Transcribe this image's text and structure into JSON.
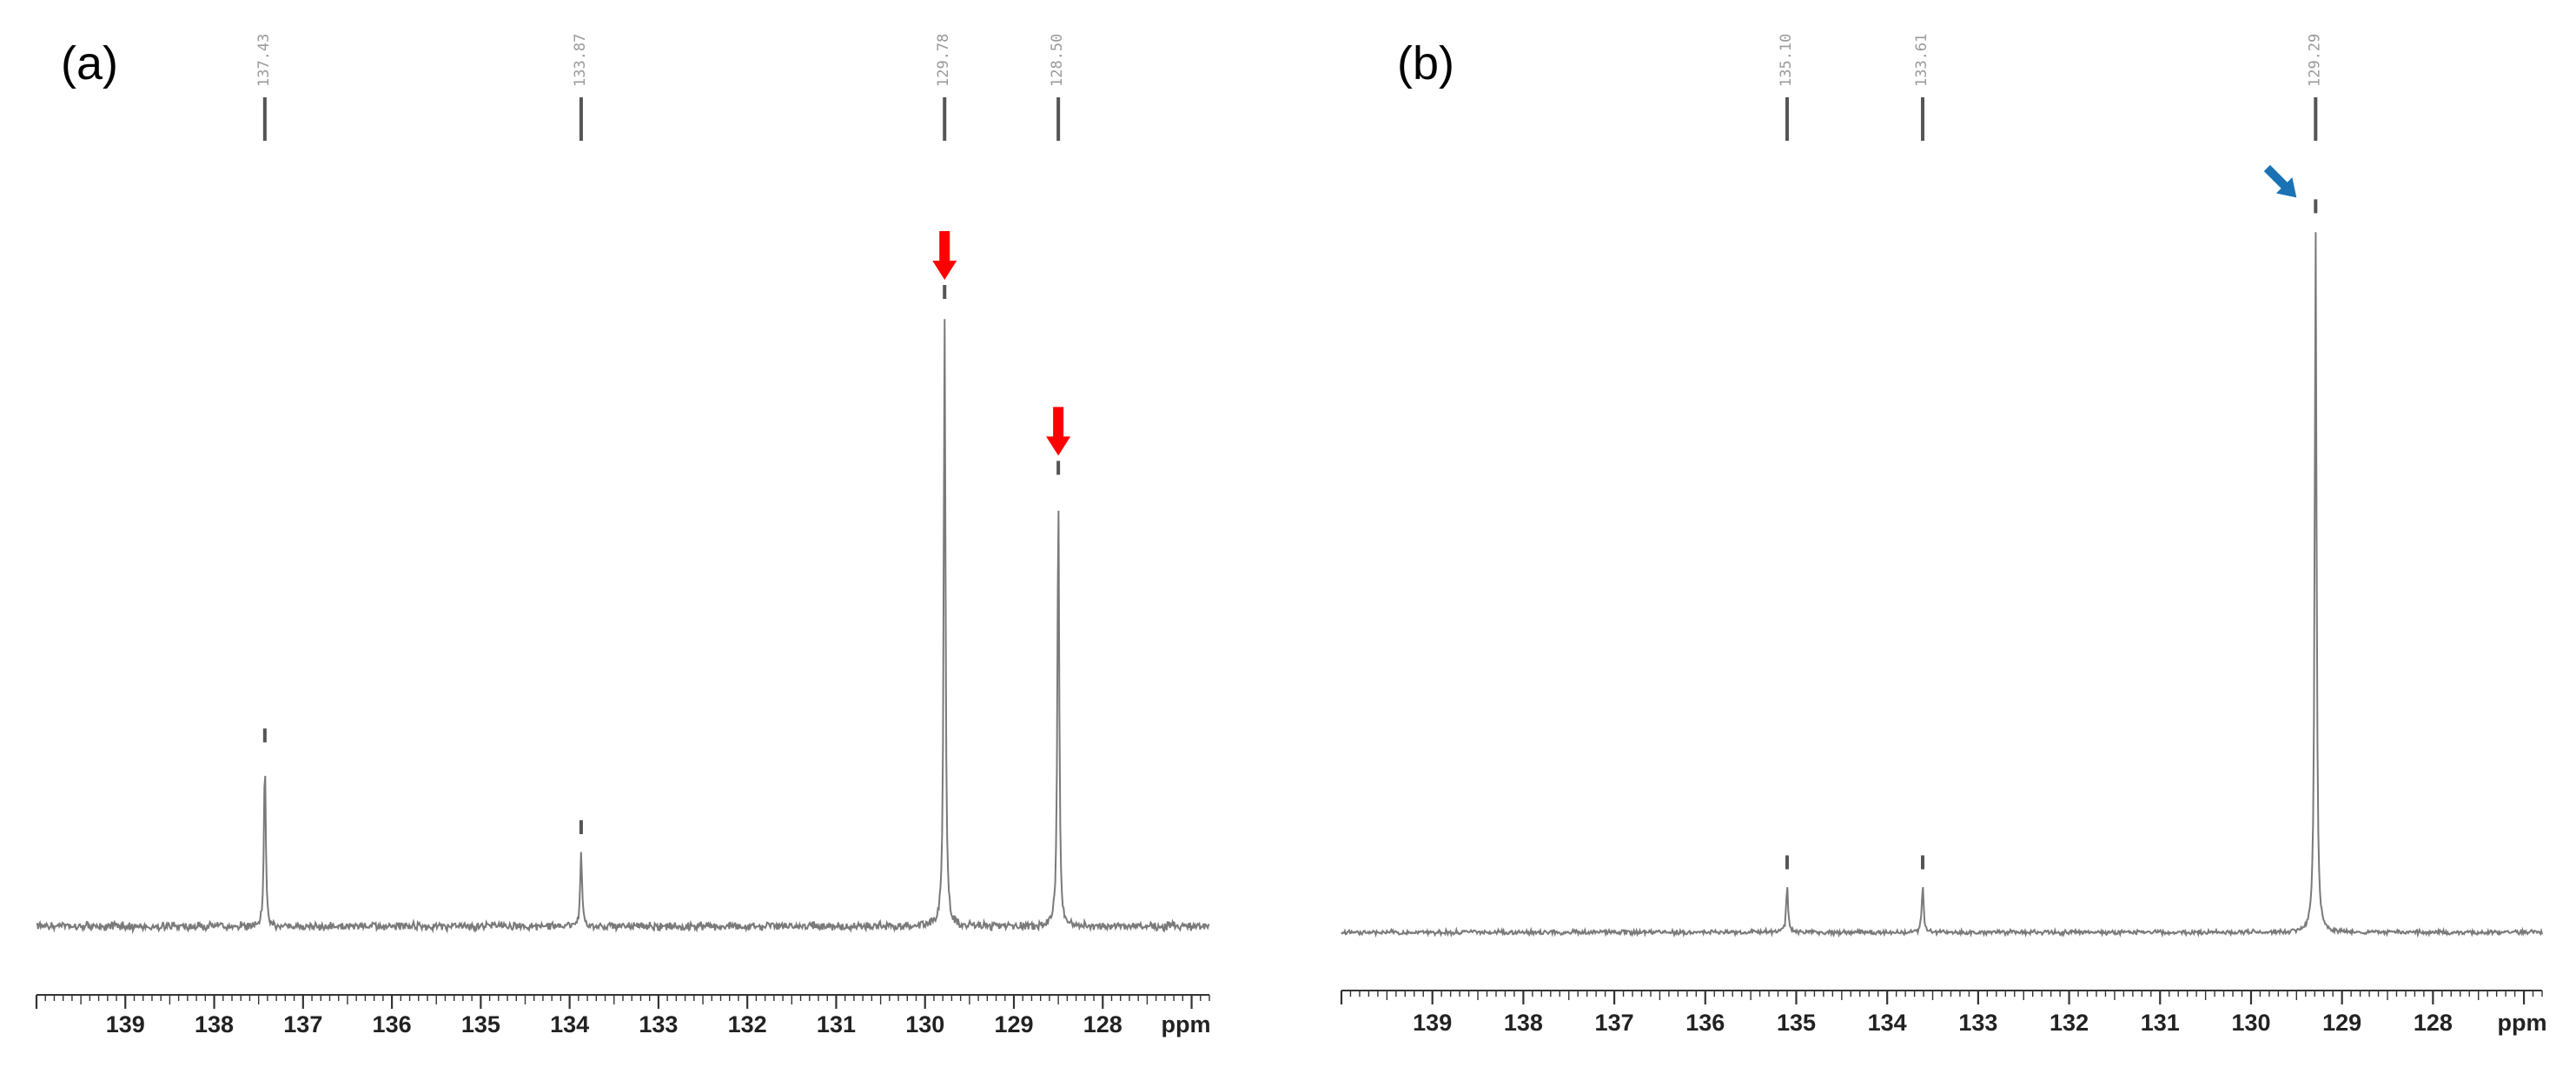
{
  "chart_data": [
    {
      "type": "line",
      "panel_label": "(a)",
      "xlabel": "ppm",
      "xlim": [
        140,
        126.8
      ],
      "x_axis_reversed": true,
      "ticks": [
        139,
        138,
        137,
        136,
        135,
        134,
        133,
        132,
        131,
        130,
        129,
        128
      ],
      "tick_labels": [
        "139",
        "138",
        "137",
        "136",
        "135",
        "134",
        "133",
        "132",
        "131",
        "130",
        "129",
        "128"
      ],
      "grid": false,
      "peak_labels": [
        "137.43",
        "133.87",
        "129.78",
        "128.50"
      ],
      "peaks": [
        {
          "ppm": 137.43,
          "relative_height": 0.22
        },
        {
          "ppm": 133.87,
          "relative_height": 0.1
        },
        {
          "ppm": 129.78,
          "relative_height": 0.8
        },
        {
          "ppm": 128.5,
          "relative_height": 0.57
        }
      ],
      "annotations": [
        {
          "type": "arrow",
          "direction": "down",
          "color": "#ff0000",
          "target_ppm": 129.78
        },
        {
          "type": "arrow",
          "direction": "down",
          "color": "#ff0000",
          "target_ppm": 128.5
        }
      ],
      "line_color": "#7a7a7a"
    },
    {
      "type": "line",
      "panel_label": "(b)",
      "xlabel": "ppm",
      "xlim": [
        140,
        126.8
      ],
      "x_axis_reversed": true,
      "ticks": [
        139,
        138,
        137,
        136,
        135,
        134,
        133,
        132,
        131,
        130,
        129,
        128
      ],
      "tick_labels": [
        "139",
        "138",
        "137",
        "136",
        "135",
        "134",
        "133",
        "132",
        "131",
        "130",
        "129",
        "128"
      ],
      "grid": false,
      "peak_labels": [
        "135.10",
        "133.61",
        "129.29"
      ],
      "peaks": [
        {
          "ppm": 135.1,
          "relative_height": 0.062
        },
        {
          "ppm": 133.61,
          "relative_height": 0.062
        },
        {
          "ppm": 129.29,
          "relative_height": 0.92
        }
      ],
      "annotations": [
        {
          "type": "arrow",
          "direction": "down-right",
          "color": "#1a72b5",
          "target_ppm": 129.29
        }
      ],
      "line_color": "#7a7a7a"
    }
  ]
}
